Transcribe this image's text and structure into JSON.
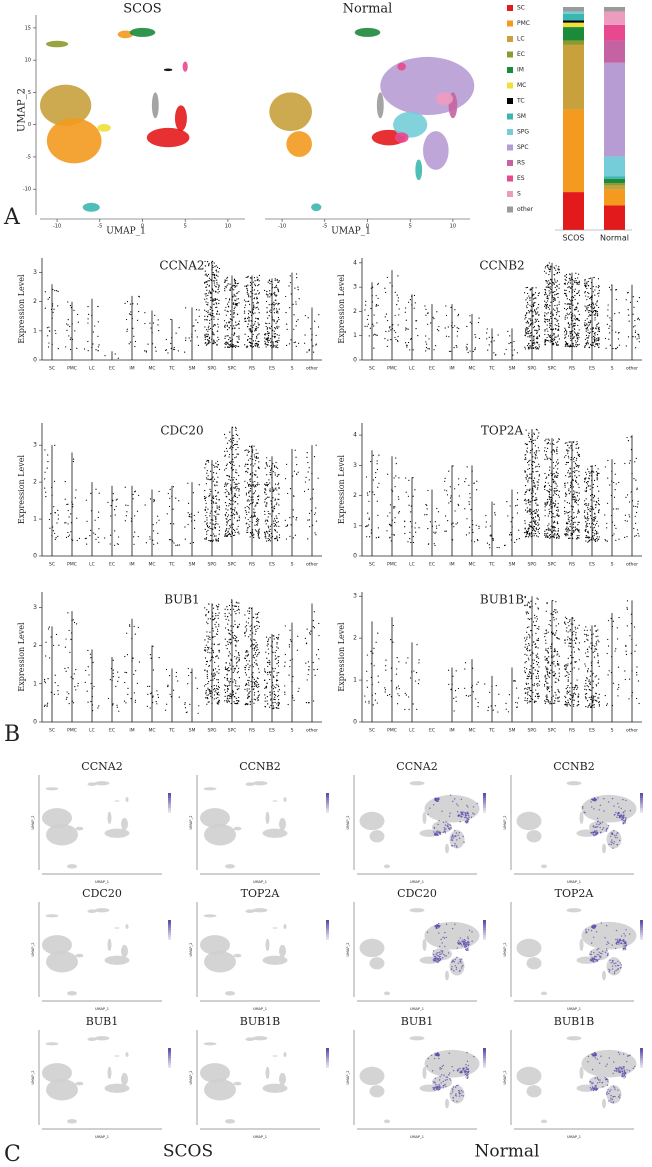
{
  "panel_labels": [
    "A",
    "B",
    "C"
  ],
  "umap": {
    "x_label": "UMAP_1",
    "y_label": "UMAP_2",
    "xlim": [
      -12,
      12
    ],
    "ylim": [
      -14,
      17
    ],
    "xticks": [
      -10,
      -5,
      0,
      5,
      10
    ],
    "yticks": [
      -10,
      -5,
      0,
      5,
      10,
      15
    ],
    "plots": [
      {
        "title": "SCOS"
      },
      {
        "title": "Normal"
      }
    ]
  },
  "composition": {
    "type": "bar",
    "stacked": true,
    "categories": [
      "SCOS",
      "Normal"
    ],
    "ylim": [
      0,
      100
    ],
    "series": [
      {
        "name": "SC",
        "color": "#e31a1c",
        "values": [
          17,
          11
        ]
      },
      {
        "name": "PMC",
        "color": "#f39a1f",
        "values": [
          37,
          7
        ]
      },
      {
        "name": "LC",
        "color": "#c8a03c",
        "values": [
          29,
          2
        ]
      },
      {
        "name": "EC",
        "color": "#8c9a2c",
        "values": [
          2,
          1
        ]
      },
      {
        "name": "IM",
        "color": "#1b8a3a",
        "values": [
          6,
          2
        ]
      },
      {
        "name": "MC",
        "color": "#f1e03a",
        "values": [
          2,
          0
        ]
      },
      {
        "name": "TC",
        "color": "#000000",
        "values": [
          1,
          0
        ]
      },
      {
        "name": "SM",
        "color": "#3cb6b0",
        "values": [
          3,
          1
        ]
      },
      {
        "name": "SPG",
        "color": "#74cdd8",
        "values": [
          1,
          9
        ]
      },
      {
        "name": "SPC",
        "color": "#b79cd4",
        "values": [
          0,
          42
        ]
      },
      {
        "name": "RS",
        "color": "#c563a2",
        "values": [
          0,
          10
        ]
      },
      {
        "name": "ES",
        "color": "#e8488f",
        "values": [
          0,
          7
        ]
      },
      {
        "name": "S",
        "color": "#ee9bc0",
        "values": [
          0,
          6
        ]
      },
      {
        "name": "other",
        "color": "#9a9a9a",
        "values": [
          2,
          2
        ]
      }
    ]
  },
  "violins": {
    "y_label": "Expression Level",
    "categories": [
      "SC",
      "PMC",
      "LC",
      "EC",
      "IM",
      "MC",
      "TC",
      "SM",
      "SPG",
      "SPC",
      "RS",
      "ES",
      "S",
      "other"
    ],
    "plots": [
      {
        "gene": "CCNA2",
        "ylim": [
          0,
          3.5
        ],
        "yticks": [
          0,
          1,
          2,
          3
        ],
        "values": [
          2.6,
          2.0,
          2.1,
          0.3,
          2.2,
          1.7,
          1.4,
          1.8,
          3.4,
          2.9,
          2.9,
          2.8,
          3.0,
          1.8
        ]
      },
      {
        "gene": "CCNB2",
        "ylim": [
          0,
          4.2
        ],
        "yticks": [
          0,
          1,
          2,
          3,
          4
        ],
        "values": [
          3.2,
          3.7,
          2.7,
          2.3,
          2.3,
          1.9,
          1.3,
          1.3,
          3.0,
          4.0,
          3.6,
          3.4,
          3.1,
          3.1
        ]
      },
      {
        "gene": "CDC20",
        "ylim": [
          0,
          3.6
        ],
        "yticks": [
          0,
          1,
          2,
          3
        ],
        "values": [
          3.0,
          2.8,
          2.0,
          1.9,
          1.9,
          1.8,
          1.9,
          2.0,
          2.6,
          3.5,
          3.0,
          2.7,
          2.9,
          3.0
        ]
      },
      {
        "gene": "TOP2A",
        "ylim": [
          0,
          4.4
        ],
        "yticks": [
          0,
          1,
          2,
          3,
          4
        ],
        "values": [
          3.5,
          3.3,
          2.6,
          2.2,
          3.0,
          3.0,
          1.8,
          2.2,
          4.2,
          3.9,
          3.8,
          3.0,
          3.2,
          4.0
        ]
      },
      {
        "gene": "BUB1",
        "ylim": [
          0,
          3.4
        ],
        "yticks": [
          0,
          1,
          2,
          3
        ],
        "values": [
          2.5,
          2.9,
          1.9,
          1.7,
          2.7,
          2.0,
          1.4,
          1.4,
          3.1,
          3.2,
          3.0,
          2.3,
          2.6,
          3.1
        ]
      },
      {
        "gene": "BUB1B",
        "ylim": [
          0,
          3.1
        ],
        "yticks": [
          0,
          1,
          2,
          3
        ],
        "values": [
          2.4,
          2.5,
          1.9,
          0,
          1.3,
          1.5,
          1.1,
          1.3,
          3.0,
          2.9,
          2.5,
          2.3,
          2.6,
          2.9
        ]
      }
    ]
  },
  "feature_plots": {
    "x_label": "UMAP_1",
    "y_label": "UMAP_2",
    "groups": [
      {
        "label": "SCOS",
        "genes": [
          "CCNA2",
          "CCNB2",
          "CDC20",
          "TOP2A",
          "BUB1",
          "BUB1B"
        ]
      },
      {
        "label": "Normal",
        "genes": [
          "CCNA2",
          "CCNB2",
          "CDC20",
          "TOP2A",
          "BUB1",
          "BUB1B"
        ]
      }
    ]
  }
}
